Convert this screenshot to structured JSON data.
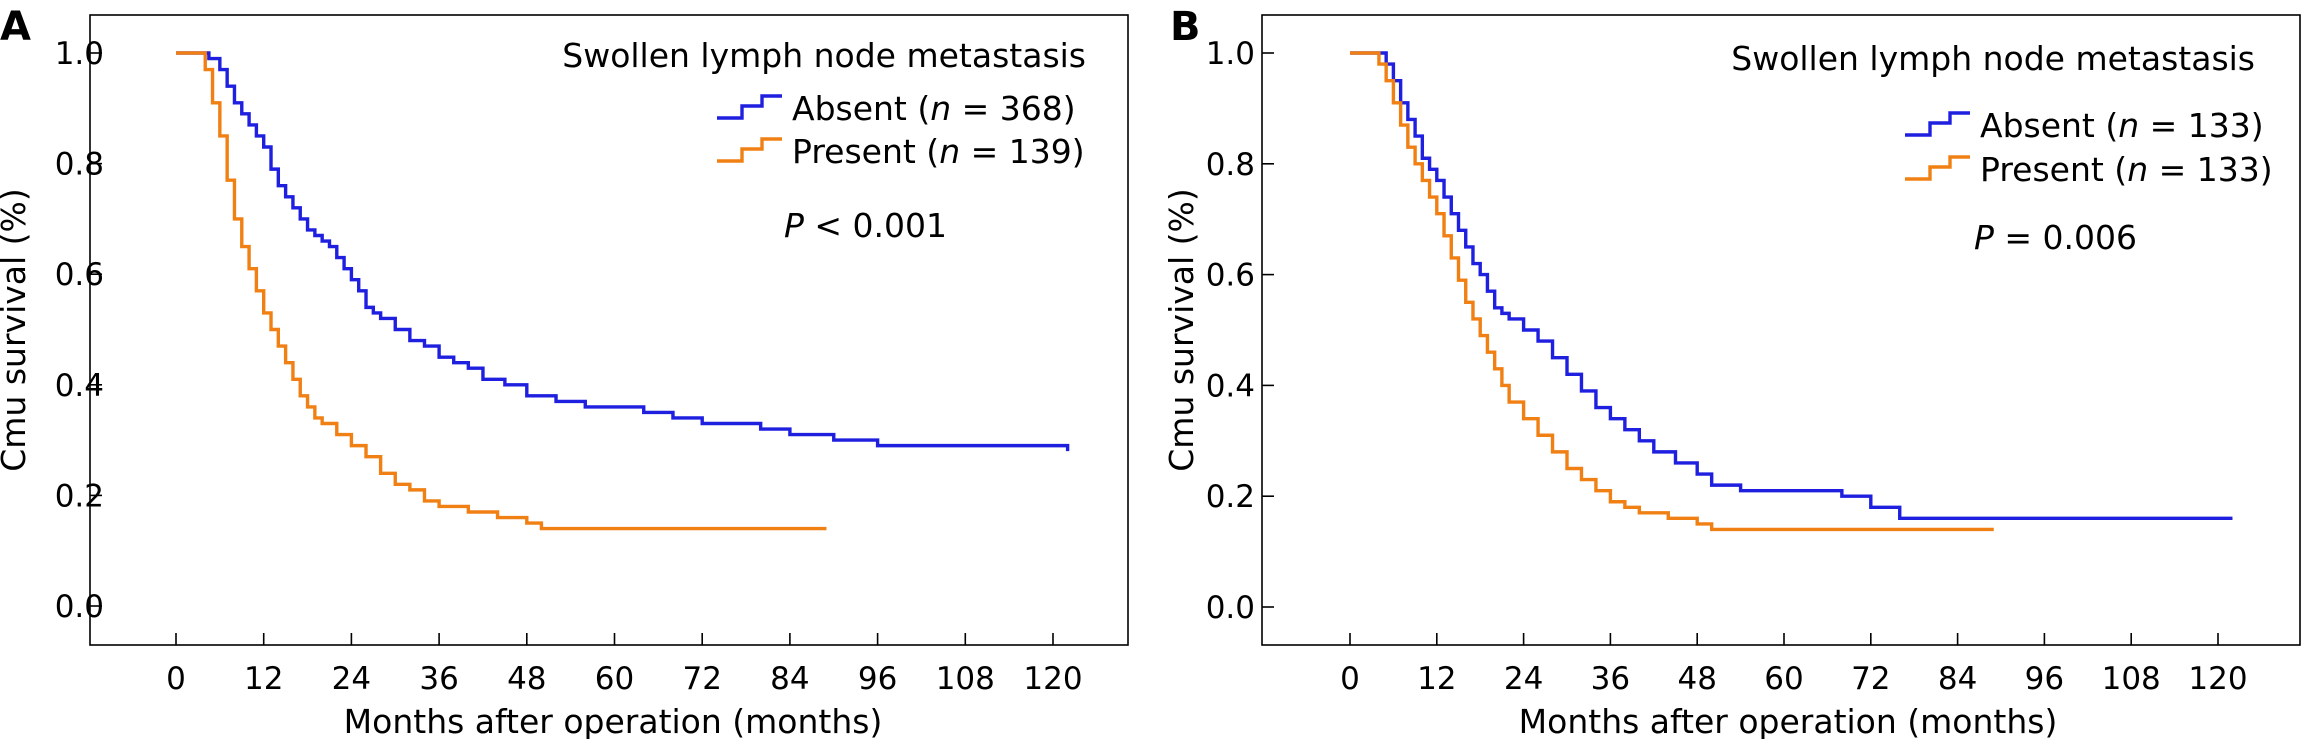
{
  "chart_data": [
    {
      "type": "line",
      "panel_label": "A",
      "legend_title": "Swollen lymph node metastasis",
      "xlabel": "Months after operation (months)",
      "ylabel": "Cmu survival (%)",
      "xlim": [
        -8,
        130
      ],
      "ylim": [
        -0.05,
        1.05
      ],
      "xticks": [
        0,
        12,
        24,
        36,
        48,
        60,
        72,
        84,
        96,
        108,
        120
      ],
      "yticks": [
        0.0,
        0.2,
        0.4,
        0.6,
        0.8,
        1.0
      ],
      "xtick_labels": [
        "0",
        "12",
        "24",
        "36",
        "48",
        "60",
        "72",
        "84",
        "96",
        "108",
        "120"
      ],
      "ytick_labels": [
        "0.0",
        "0.2",
        "0.4",
        "0.6",
        "0.8",
        "1.0"
      ],
      "pvalue": {
        "label": "P",
        "text": " < 0.001"
      },
      "legend_position": "top-right",
      "grid": false,
      "series": [
        {
          "name": "Absent (n = 368)",
          "legend_prefix": "Absent (",
          "legend_n": "n",
          "legend_suffix": " = 368)",
          "color": "#1f1fe0",
          "x": [
            0,
            4.5,
            6,
            7,
            8,
            9,
            10,
            11,
            12,
            13,
            14,
            15,
            16,
            17,
            18,
            19,
            20,
            21,
            22,
            23,
            24,
            25,
            26,
            27,
            28,
            30,
            32,
            34,
            36,
            38,
            40,
            42,
            45,
            48,
            52,
            56,
            60,
            64,
            68,
            72,
            80,
            84,
            90,
            96,
            122
          ],
          "y": [
            1.0,
            0.99,
            0.97,
            0.94,
            0.91,
            0.89,
            0.87,
            0.85,
            0.83,
            0.79,
            0.76,
            0.74,
            0.72,
            0.7,
            0.68,
            0.67,
            0.66,
            0.65,
            0.63,
            0.61,
            0.59,
            0.57,
            0.54,
            0.53,
            0.52,
            0.5,
            0.48,
            0.47,
            0.45,
            0.44,
            0.43,
            0.41,
            0.4,
            0.38,
            0.37,
            0.36,
            0.36,
            0.35,
            0.34,
            0.33,
            0.32,
            0.31,
            0.3,
            0.29,
            0.28
          ]
        },
        {
          "name": "Present (n = 139)",
          "legend_prefix": "Present (",
          "legend_n": "n",
          "legend_suffix": " = 139)",
          "color": "#f08014",
          "x": [
            0,
            4,
            5,
            6,
            7,
            8,
            9,
            10,
            11,
            12,
            13,
            14,
            15,
            16,
            17,
            18,
            19,
            20,
            22,
            24,
            26,
            28,
            30,
            32,
            34,
            36,
            40,
            44,
            48,
            50,
            89
          ],
          "y": [
            1.0,
            0.97,
            0.91,
            0.85,
            0.77,
            0.7,
            0.65,
            0.61,
            0.57,
            0.53,
            0.5,
            0.47,
            0.44,
            0.41,
            0.38,
            0.36,
            0.34,
            0.33,
            0.31,
            0.29,
            0.27,
            0.24,
            0.22,
            0.21,
            0.19,
            0.18,
            0.17,
            0.16,
            0.15,
            0.14,
            0.14
          ]
        }
      ]
    },
    {
      "type": "line",
      "panel_label": "B",
      "legend_title": "Swollen lymph node metastasis",
      "xlabel": "Months after operation (months)",
      "ylabel": "Cmu survival (%)",
      "xlim": [
        -8,
        130
      ],
      "ylim": [
        -0.05,
        1.05
      ],
      "xticks": [
        0,
        12,
        24,
        36,
        48,
        60,
        72,
        84,
        96,
        108,
        120
      ],
      "yticks": [
        0.0,
        0.2,
        0.4,
        0.6,
        0.8,
        1.0
      ],
      "xtick_labels": [
        "0",
        "12",
        "24",
        "36",
        "48",
        "60",
        "72",
        "84",
        "96",
        "108",
        "120"
      ],
      "ytick_labels": [
        "0.0",
        "0.2",
        "0.4",
        "0.6",
        "0.8",
        "1.0"
      ],
      "pvalue": {
        "label": "P",
        "text": " = 0.006"
      },
      "legend_position": "top-right",
      "grid": false,
      "series": [
        {
          "name": "Absent (n = 133)",
          "legend_prefix": "Absent (",
          "legend_n": "n",
          "legend_suffix": " = 133)",
          "color": "#1f1fe0",
          "x": [
            0,
            5,
            6,
            7,
            8,
            9,
            10,
            11,
            12,
            13,
            14,
            15,
            16,
            17,
            18,
            19,
            20,
            21,
            22,
            24,
            26,
            28,
            30,
            32,
            34,
            36,
            38,
            40,
            42,
            45,
            48,
            50,
            54,
            58,
            62,
            66,
            68,
            72,
            76,
            80,
            122
          ],
          "y": [
            1.0,
            0.98,
            0.95,
            0.91,
            0.88,
            0.85,
            0.81,
            0.79,
            0.77,
            0.74,
            0.71,
            0.68,
            0.65,
            0.62,
            0.6,
            0.57,
            0.54,
            0.53,
            0.52,
            0.5,
            0.48,
            0.45,
            0.42,
            0.39,
            0.36,
            0.34,
            0.32,
            0.3,
            0.28,
            0.26,
            0.24,
            0.22,
            0.21,
            0.21,
            0.21,
            0.21,
            0.2,
            0.18,
            0.16,
            0.16,
            0.16
          ]
        },
        {
          "name": "Present (n = 133)",
          "legend_prefix": "Present (",
          "legend_n": "n",
          "legend_suffix": " = 133)",
          "color": "#f08014",
          "x": [
            0,
            4,
            5,
            6,
            7,
            8,
            9,
            10,
            11,
            12,
            13,
            14,
            15,
            16,
            17,
            18,
            19,
            20,
            21,
            22,
            24,
            26,
            28,
            30,
            32,
            34,
            36,
            38,
            40,
            44,
            48,
            50,
            60,
            89
          ],
          "y": [
            1.0,
            0.98,
            0.95,
            0.91,
            0.87,
            0.83,
            0.8,
            0.77,
            0.74,
            0.71,
            0.67,
            0.63,
            0.59,
            0.55,
            0.52,
            0.49,
            0.46,
            0.43,
            0.4,
            0.37,
            0.34,
            0.31,
            0.28,
            0.25,
            0.23,
            0.21,
            0.19,
            0.18,
            0.17,
            0.16,
            0.15,
            0.14,
            0.14,
            0.14
          ]
        }
      ]
    }
  ]
}
